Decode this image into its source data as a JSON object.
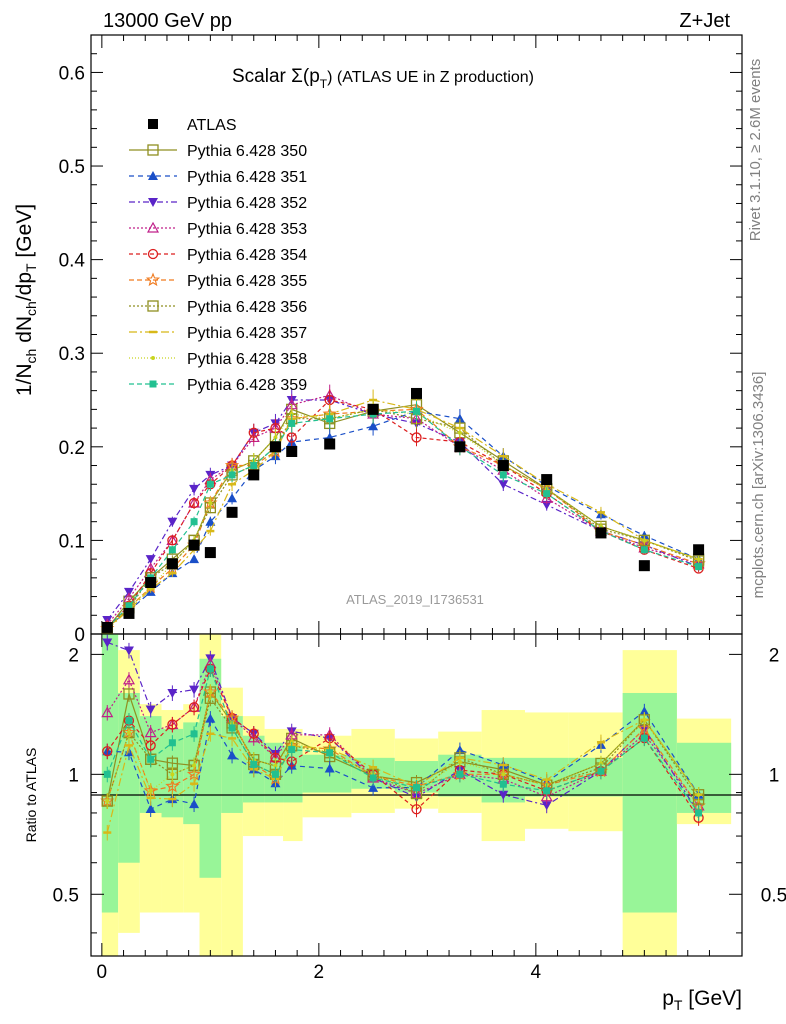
{
  "header": {
    "left": "13000 GeV pp",
    "right": "Z+Jet"
  },
  "side_labels": {
    "rivet": "Rivet 3.1.10, ≥ 2.6M events",
    "mcplots": "mcplots.cern.ch [arXiv:1306.3436]"
  },
  "chart_data": {
    "type": "scatter",
    "title_parts": {
      "a": "Scalar Σ(p",
      "sub": "T",
      "b": ") (ATLAS UE in Z production)"
    },
    "xlabel": "p_T [GeV]",
    "ylabel": "1/N_ch dN_ch/dp_T [GeV]",
    "ratio_ylabel": "Ratio to ATLAS",
    "ref_label": "ATLAS_2019_I1736531",
    "xlim": [
      -0.1,
      5.9
    ],
    "ylim": [
      0,
      0.64
    ],
    "ratio_ylim": [
      0.35,
      2.25
    ],
    "x_ticks": [
      "0",
      "2",
      "4"
    ],
    "y_ticks": [
      "0",
      "0.1",
      "0.2",
      "0.3",
      "0.4",
      "0.5",
      "0.6"
    ],
    "ratio_ticks": [
      "0.5",
      "1",
      "2"
    ],
    "x": [
      0.05,
      0.25,
      0.45,
      0.65,
      0.85,
      1.0,
      1.2,
      1.4,
      1.6,
      1.75,
      2.1,
      2.5,
      2.9,
      3.3,
      3.7,
      4.1,
      4.6,
      5.0,
      5.5
    ],
    "data": {
      "name": "ATLAS",
      "values": [
        0.007,
        0.022,
        0.055,
        0.075,
        0.095,
        0.087,
        0.13,
        0.17,
        0.2,
        0.195,
        0.203,
        0.24,
        0.257,
        0.2,
        0.18,
        0.165,
        0.108,
        0.073,
        0.09
      ]
    },
    "band_edges": [
      0.0,
      0.15,
      0.35,
      0.55,
      0.75,
      0.9,
      1.1,
      1.3,
      1.5,
      1.67,
      1.85,
      2.3,
      2.7,
      3.1,
      3.5,
      3.9,
      4.3,
      4.8,
      5.3,
      5.8
    ],
    "band_inner": [
      [
        0.45,
        2.3
      ],
      [
        0.6,
        1.6
      ],
      [
        0.8,
        1.4
      ],
      [
        0.78,
        1.3
      ],
      [
        0.75,
        1.35
      ],
      [
        0.55,
        1.95
      ],
      [
        0.8,
        1.4
      ],
      [
        0.85,
        1.25
      ],
      [
        0.85,
        1.2
      ],
      [
        0.85,
        1.18
      ],
      [
        0.9,
        1.12
      ],
      [
        0.92,
        1.1
      ],
      [
        0.9,
        1.08
      ],
      [
        0.88,
        1.12
      ],
      [
        0.85,
        1.1
      ],
      [
        0.88,
        1.1
      ],
      [
        0.88,
        1.1
      ],
      [
        0.45,
        1.6
      ],
      [
        0.8,
        1.2
      ]
    ],
    "band_outer": [
      [
        0.35,
        2.3
      ],
      [
        0.4,
        2.05
      ],
      [
        0.45,
        1.5
      ],
      [
        0.45,
        1.45
      ],
      [
        0.45,
        1.5
      ],
      [
        0.35,
        2.25
      ],
      [
        0.35,
        1.65
      ],
      [
        0.7,
        1.4
      ],
      [
        0.7,
        1.3
      ],
      [
        0.68,
        1.3
      ],
      [
        0.78,
        1.25
      ],
      [
        0.8,
        1.3
      ],
      [
        0.82,
        1.23
      ],
      [
        0.8,
        1.28
      ],
      [
        0.68,
        1.45
      ],
      [
        0.73,
        1.43
      ],
      [
        0.72,
        1.43
      ],
      [
        0.35,
        2.05
      ],
      [
        0.75,
        1.38
      ]
    ],
    "series": [
      {
        "name": "Pythia 6.428 350",
        "color": "#8f8f20",
        "marker": "square-open",
        "dash": "",
        "line": true,
        "values": [
          0.006,
          0.035,
          0.06,
          0.08,
          0.1,
          0.14,
          0.175,
          0.185,
          0.21,
          0.24,
          0.225,
          0.238,
          0.245,
          0.215,
          0.185,
          0.155,
          0.115,
          0.1,
          0.08
        ]
      },
      {
        "name": "Pythia 6.428 351",
        "color": "#1a4fc8",
        "marker": "triangle-up",
        "dash": "5,4",
        "line": true,
        "values": [
          0.008,
          0.025,
          0.045,
          0.065,
          0.08,
          0.12,
          0.145,
          0.175,
          0.19,
          0.205,
          0.21,
          0.222,
          0.238,
          0.23,
          0.19,
          0.158,
          0.128,
          0.105,
          0.08
        ]
      },
      {
        "name": "Pythia 6.428 352",
        "color": "#5a24c8",
        "marker": "triangle-down",
        "dash": "6,3,2,3",
        "line": true,
        "values": [
          0.015,
          0.045,
          0.08,
          0.12,
          0.155,
          0.17,
          0.18,
          0.215,
          0.225,
          0.25,
          0.25,
          0.235,
          0.225,
          0.205,
          0.16,
          0.138,
          0.11,
          0.095,
          0.072
        ]
      },
      {
        "name": "Pythia 6.428 353",
        "color": "#c0208a",
        "marker": "triangle-open",
        "dash": "2,2",
        "line": true,
        "values": [
          0.01,
          0.038,
          0.07,
          0.1,
          0.14,
          0.165,
          0.18,
          0.21,
          0.22,
          0.245,
          0.255,
          0.235,
          0.23,
          0.2,
          0.175,
          0.145,
          0.11,
          0.092,
          0.075
        ]
      },
      {
        "name": "Pythia 6.428 354",
        "color": "#dc1e1e",
        "marker": "circle-open",
        "dash": "4,3",
        "line": true,
        "values": [
          0.008,
          0.03,
          0.065,
          0.1,
          0.14,
          0.16,
          0.18,
          0.215,
          0.22,
          0.21,
          0.25,
          0.24,
          0.21,
          0.205,
          0.18,
          0.15,
          0.11,
          0.09,
          0.07
        ]
      },
      {
        "name": "Pythia 6.428 355",
        "color": "#f07a1e",
        "marker": "star-open",
        "dash": "5,3",
        "line": true,
        "values": [
          0.006,
          0.028,
          0.05,
          0.07,
          0.095,
          0.14,
          0.18,
          0.18,
          0.195,
          0.23,
          0.235,
          0.238,
          0.24,
          0.2,
          0.18,
          0.155,
          0.11,
          0.095,
          0.075
        ]
      },
      {
        "name": "Pythia 6.428 356",
        "color": "#8f8f20",
        "marker": "square-open",
        "dash": "2,2",
        "line": true,
        "values": [
          0.006,
          0.028,
          0.06,
          0.075,
          0.1,
          0.135,
          0.17,
          0.18,
          0.2,
          0.23,
          0.23,
          0.24,
          0.23,
          0.22,
          0.18,
          0.155,
          0.112,
          0.1,
          0.078
        ]
      },
      {
        "name": "Pythia 6.428 357",
        "color": "#d8b818",
        "marker": "dash-tick",
        "dash": "8,3,2,3",
        "line": true,
        "values": [
          0.005,
          0.026,
          0.048,
          0.065,
          0.09,
          0.11,
          0.16,
          0.175,
          0.195,
          0.23,
          0.235,
          0.25,
          0.24,
          0.22,
          0.19,
          0.16,
          0.13,
          0.1,
          0.08
        ]
      },
      {
        "name": "Pythia 6.428 358",
        "color": "#c8d41e",
        "marker": "dot",
        "dash": "1,2",
        "line": true,
        "values": [
          0.006,
          0.028,
          0.05,
          0.075,
          0.1,
          0.14,
          0.175,
          0.185,
          0.21,
          0.235,
          0.23,
          0.24,
          0.235,
          0.215,
          0.18,
          0.155,
          0.115,
          0.1,
          0.08
        ]
      },
      {
        "name": "Pythia 6.428 359",
        "color": "#22c090",
        "marker": "square-solid",
        "dash": "5,3",
        "line": true,
        "values": [
          0.007,
          0.03,
          0.06,
          0.09,
          0.12,
          0.16,
          0.17,
          0.18,
          0.2,
          0.225,
          0.23,
          0.235,
          0.238,
          0.2,
          0.17,
          0.15,
          0.11,
          0.09,
          0.072
        ]
      }
    ]
  }
}
